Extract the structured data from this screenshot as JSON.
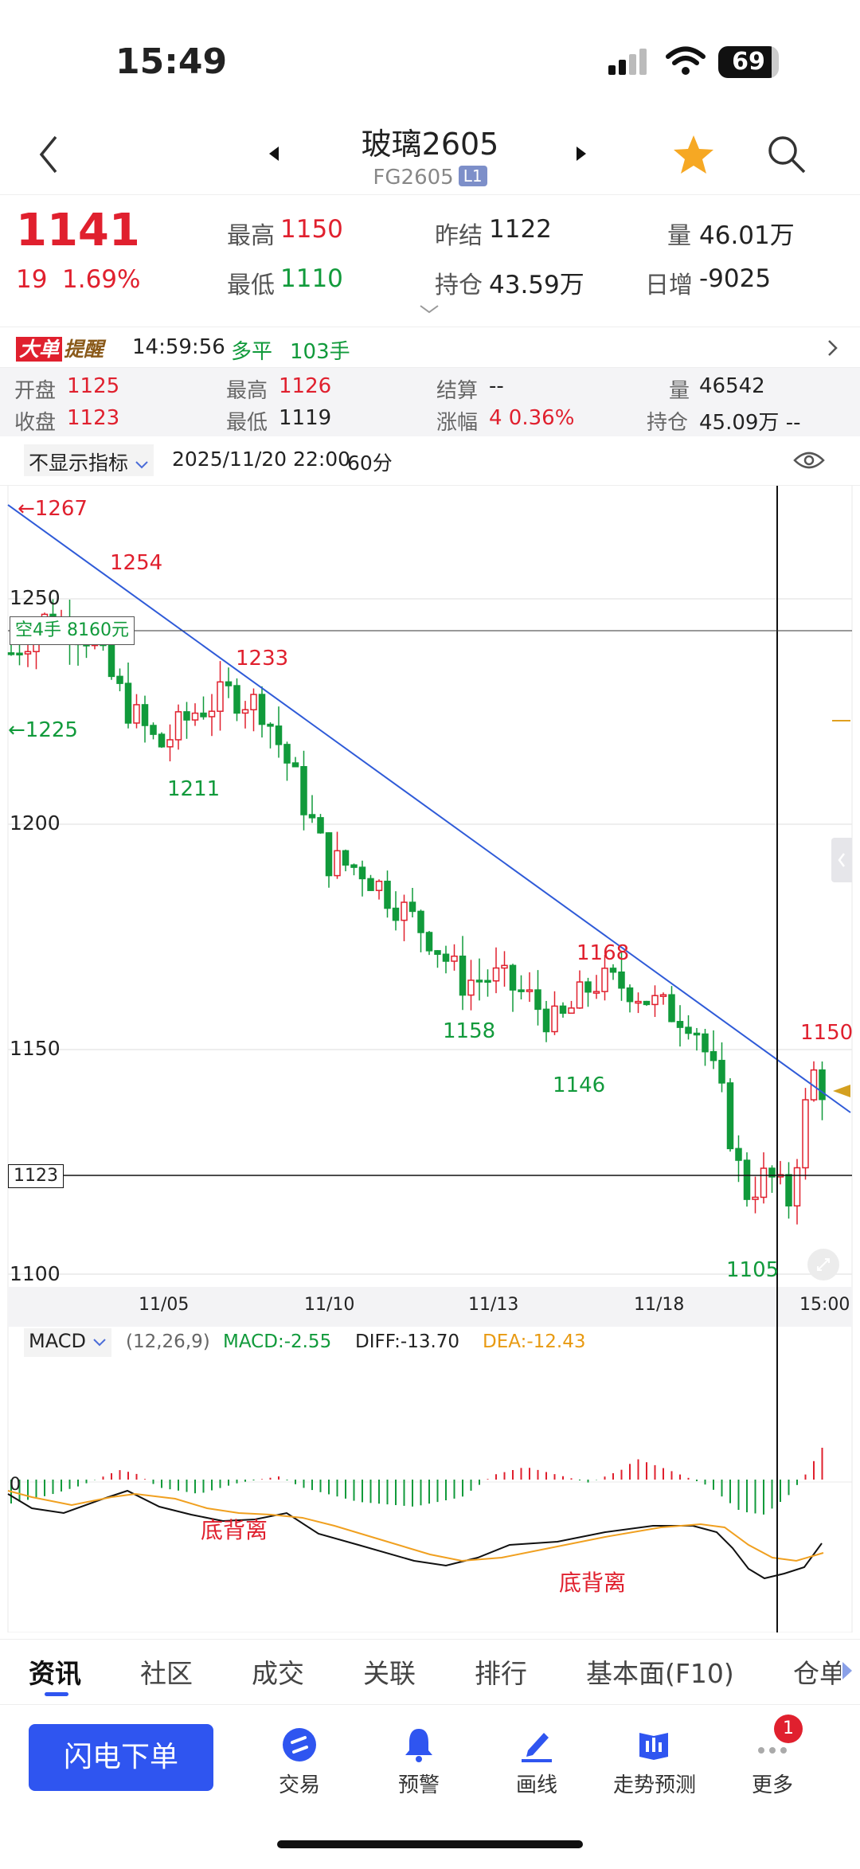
{
  "status": {
    "time": "15:49",
    "battery": "69"
  },
  "nav": {
    "title": "玻璃2605",
    "code": "FG2605",
    "badge": "L1"
  },
  "quote": {
    "price": "1141",
    "change": "19",
    "change_pct": "1.69%",
    "high_label": "最高",
    "high": "1150",
    "low_label": "最低",
    "low": "1110",
    "prev_settle_label": "昨结",
    "prev_settle": "1122",
    "oi_label": "持仓",
    "oi": "43.59万",
    "vol_label": "量",
    "vol": "46.01万",
    "day_inc_label": "日增",
    "day_inc": "-9025"
  },
  "reminder": {
    "tag1": "大单",
    "tag2": "提醒",
    "time": "14:59:56",
    "type": "多平",
    "lots": "103手"
  },
  "ohlc": {
    "open_label": "开盘",
    "open": "1125",
    "close_label": "收盘",
    "close": "1123",
    "high_label": "最高",
    "high": "1126",
    "low_label": "最低",
    "low": "1119",
    "settle_label": "结算",
    "settle": "--",
    "range_label": "涨幅",
    "range": "4 0.36%",
    "vol_label": "量",
    "vol": "46542",
    "oi_label": "持仓",
    "oi": "45.09万 --"
  },
  "toolbar": {
    "indicator": "不显示指标",
    "datetime": "2025/11/20 22:00",
    "period": "60分"
  },
  "chart": {
    "y_ticks": [
      "1250",
      "1200",
      "1150",
      "1100"
    ],
    "x_ticks": [
      "11/05",
      "11/10",
      "11/13",
      "11/18",
      "15:00"
    ],
    "crosshair_price": "1123",
    "position_tag": "空4手 8160元",
    "annotations": {
      "a1267": "←1267",
      "a1254": "1254",
      "a1225": "←1225",
      "a1233": "1233",
      "a1211": "1211",
      "a1158": "1158",
      "a1168": "1168",
      "a1146": "1146",
      "a1105": "1105",
      "a1150": "1150"
    },
    "colors": {
      "up": "#e0202e",
      "down": "#119a3b",
      "trend": "#2f5bd8"
    }
  },
  "macd": {
    "name": "MACD",
    "params": "(12,26,9)",
    "macd_label": "MACD:-2.55",
    "diff_label": "DIFF:-13.70",
    "dea_label": "DEA:-12.43",
    "zero": "0",
    "div1": "底背离",
    "div2": "底背离"
  },
  "tabs": [
    "资讯",
    "社区",
    "成交",
    "关联",
    "排行",
    "基本面(F10)",
    "仓单"
  ],
  "bottom": {
    "flash": "闪电下单",
    "items": [
      {
        "label": "交易",
        "icon": "trade-icon"
      },
      {
        "label": "预警",
        "icon": "bell-icon"
      },
      {
        "label": "画线",
        "icon": "draw-line-icon"
      },
      {
        "label": "走势预测",
        "icon": "forecast-icon"
      },
      {
        "label": "更多",
        "icon": "more-icon",
        "badge": "1"
      }
    ]
  }
}
